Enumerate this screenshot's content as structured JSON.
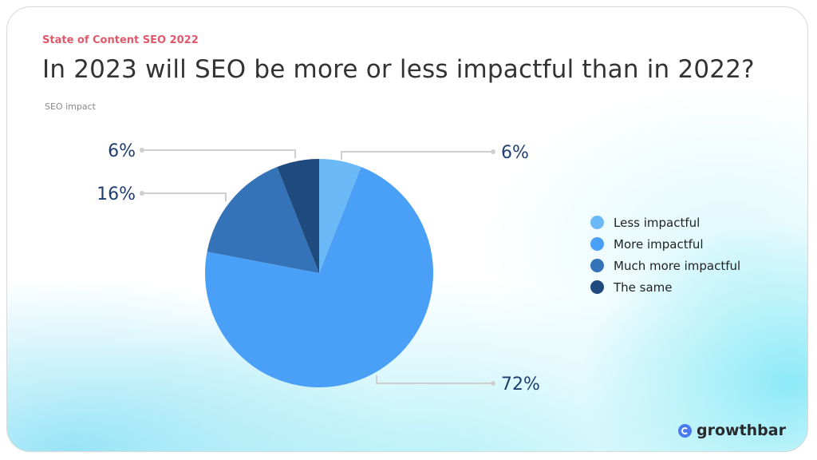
{
  "header": {
    "kicker": "State of Content SEO 2022",
    "title": "In 2023 will SEO be more or less impactful than in 2022?",
    "subtitle": "SEO impact"
  },
  "chart_data": {
    "type": "pie",
    "title": "In 2023 will SEO be more or less impactful than in 2022?",
    "subtitle": "SEO impact",
    "categories": [
      "Less impactful",
      "More impactful",
      "Much more impactful",
      "The same"
    ],
    "values": [
      6,
      72,
      16,
      6
    ],
    "labels": [
      "6%",
      "72%",
      "16%",
      "6%"
    ],
    "colors": [
      "#6cb9f8",
      "#4aa0f6",
      "#3573b8",
      "#1e4a7e"
    ],
    "legend": "right"
  },
  "brand": {
    "name": "growthbar",
    "accent": "#4a7bf0"
  }
}
